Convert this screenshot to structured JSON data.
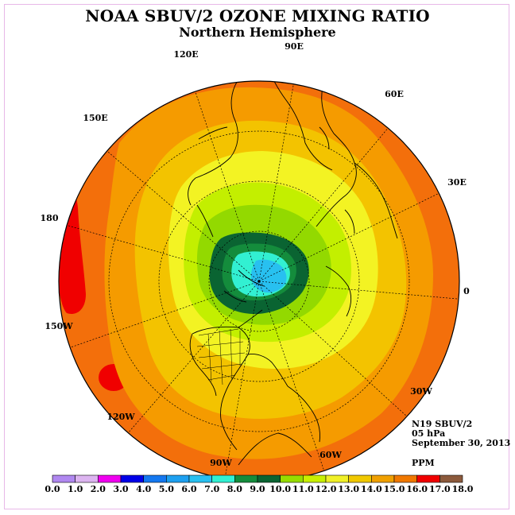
{
  "title": "NOAA SBUV/2 OZONE MIXING RATIO",
  "subtitle": "Northern Hemisphere",
  "longitude_labels": {
    "lon_90e": "90E",
    "lon_60e": "60E",
    "lon_30e": "30E",
    "lon_0": "0",
    "lon_30w": "30W",
    "lon_60w": "60W",
    "lon_90w": "90W",
    "lon_120w": "120W",
    "lon_150w": "150W",
    "lon_180": "180",
    "lon_150e": "150E",
    "lon_120e": "120E"
  },
  "info": {
    "instrument": "N19 SBUV/2",
    "pressure_level": "05 hPa",
    "date": "September 30, 2013",
    "units": "PPM"
  },
  "colorbar": {
    "ticks": [
      "0.0",
      "1.0",
      "2.0",
      "3.0",
      "4.0",
      "5.0",
      "6.0",
      "7.0",
      "8.0",
      "9.0",
      "10.0",
      "11.0",
      "12.0",
      "13.0",
      "14.0",
      "15.0",
      "16.0",
      "17.0",
      "18.0"
    ],
    "colors": [
      "#b088f0",
      "#dcb4f0",
      "#f000f0",
      "#0000e8",
      "#1478f0",
      "#1ea0f0",
      "#28c0f0",
      "#32f0d2",
      "#148c3c",
      "#0a6432",
      "#96dc00",
      "#c8f000",
      "#f0f028",
      "#f0c800",
      "#f0a000",
      "#f07800",
      "#f00000",
      "#8c5a3c"
    ]
  },
  "map_colors": {
    "orange_15_16": "#f36f0b",
    "orange_14_15": "#f59b00",
    "amber_13_14": "#f3c300",
    "yellow_12_13": "#f3f323",
    "lime_11_12": "#c3ef00",
    "green_10_11": "#93d900",
    "darkgreen_9_10": "#0a6432",
    "green_8_9": "#148c3c",
    "cyan_7_8": "#32f0d2",
    "lightblue_6_7": "#28c0f0",
    "red_16_17": "#f00000"
  }
}
